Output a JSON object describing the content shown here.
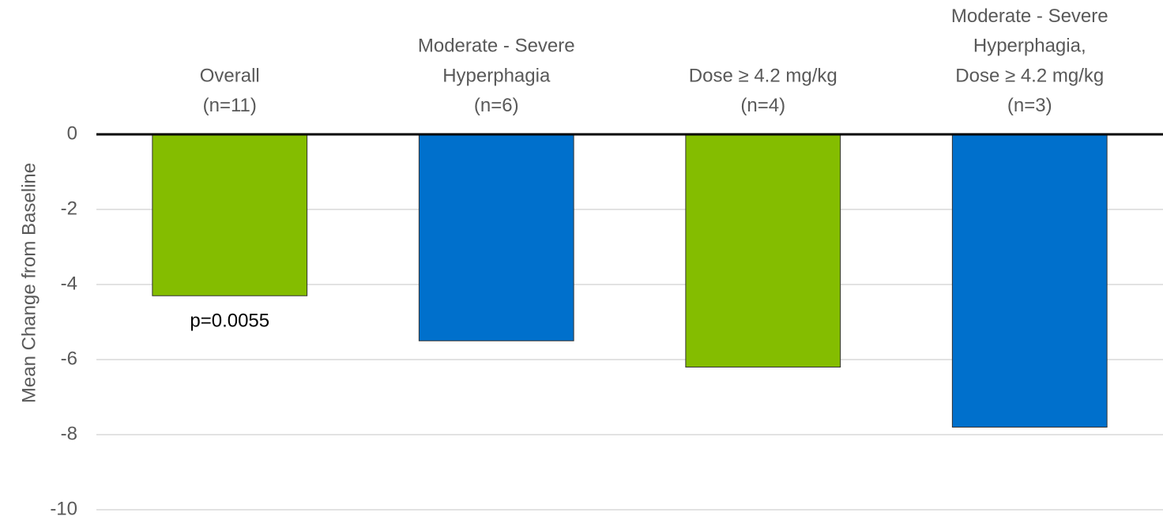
{
  "chart_data": {
    "type": "bar",
    "y_label": "Mean Change from Baseline",
    "categories": [
      [
        "Overall",
        "(n=11)"
      ],
      [
        "Moderate - Severe",
        "Hyperphagia",
        "(n=6)"
      ],
      [
        "Dose ≥ 4.2 mg/kg",
        "(n=4)"
      ],
      [
        "Moderate - Severe",
        "Hyperphagia,",
        "Dose ≥ 4.2 mg/kg",
        "(n=3)"
      ]
    ],
    "values": [
      -4.3,
      -5.5,
      -6.2,
      -7.8
    ],
    "colors": [
      "#84bd00",
      "#0070cc",
      "#84bd00",
      "#0070cc"
    ],
    "annotation": "p=0.0055",
    "ylim": [
      -10,
      0
    ],
    "yticks": [
      0,
      -2,
      -4,
      -6,
      -8,
      -10
    ],
    "grid": true
  }
}
